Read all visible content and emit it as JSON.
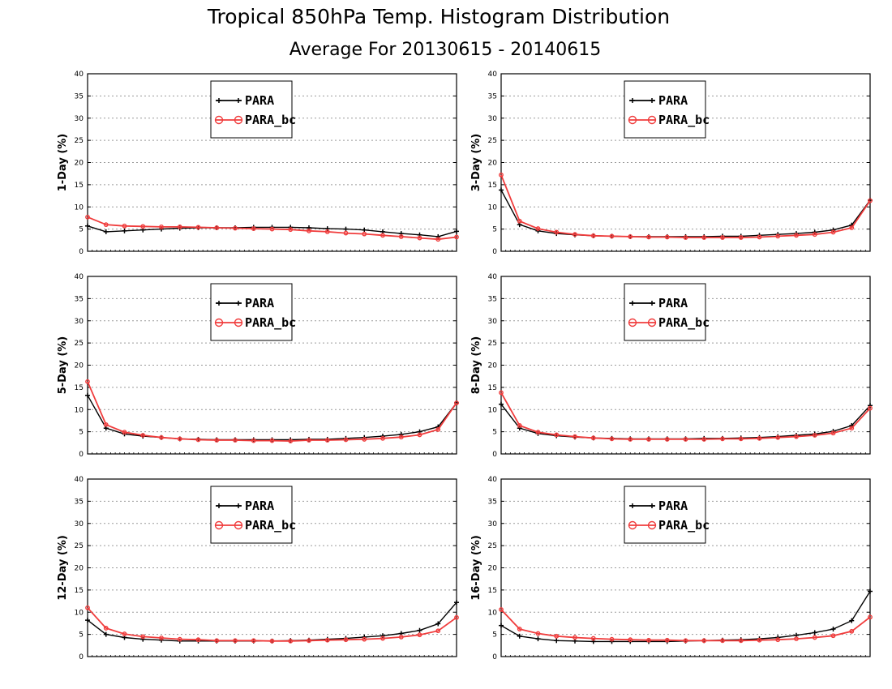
{
  "title": "Tropical 850hPa Temp. Histogram Distribution",
  "subtitle": "Average For 20130615 - 20140615",
  "colors": {
    "PARA": "#000000",
    "PARA_bc": "#f03c3c",
    "grid": "#9a9a9a",
    "frame": "#000000"
  },
  "chart_data": [
    {
      "type": "line",
      "ylabel": "1-Day (%)",
      "ylim": [
        0,
        40
      ],
      "yticks": [
        "0",
        "5",
        "10",
        "15",
        "20",
        "25",
        "30",
        "35",
        "40"
      ],
      "grid": true,
      "legend": "top-center",
      "x": [
        1,
        2,
        3,
        4,
        5,
        6,
        7,
        8,
        9,
        10,
        11,
        12,
        13,
        14,
        15,
        16,
        17,
        18,
        19,
        20,
        21
      ],
      "series": [
        {
          "name": "PARA",
          "marker": "plus",
          "values": [
            5.7,
            4.4,
            4.6,
            4.8,
            5.0,
            5.2,
            5.3,
            5.3,
            5.3,
            5.4,
            5.4,
            5.4,
            5.3,
            5.1,
            5.0,
            4.8,
            4.4,
            4.0,
            3.7,
            3.3,
            4.5
          ]
        },
        {
          "name": "PARA_bc",
          "marker": "circle",
          "values": [
            7.7,
            6.0,
            5.7,
            5.6,
            5.5,
            5.5,
            5.4,
            5.3,
            5.2,
            5.1,
            5.0,
            4.9,
            4.6,
            4.4,
            4.1,
            3.9,
            3.6,
            3.3,
            3.0,
            2.7,
            3.2
          ]
        }
      ]
    },
    {
      "type": "line",
      "ylabel": "3-Day (%)",
      "ylim": [
        0,
        40
      ],
      "yticks": [
        "0",
        "5",
        "10",
        "15",
        "20",
        "25",
        "30",
        "35",
        "40"
      ],
      "grid": true,
      "legend": "top-center",
      "x": [
        1,
        2,
        3,
        4,
        5,
        6,
        7,
        8,
        9,
        10,
        11,
        12,
        13,
        14,
        15,
        16,
        17,
        18,
        19,
        20,
        21
      ],
      "series": [
        {
          "name": "PARA",
          "marker": "plus",
          "values": [
            13.8,
            6.0,
            4.6,
            4.0,
            3.7,
            3.5,
            3.4,
            3.3,
            3.3,
            3.3,
            3.3,
            3.3,
            3.4,
            3.4,
            3.6,
            3.8,
            4.0,
            4.3,
            4.8,
            5.9,
            11.5
          ]
        },
        {
          "name": "PARA_bc",
          "marker": "circle",
          "values": [
            17.2,
            6.8,
            5.1,
            4.3,
            3.8,
            3.5,
            3.4,
            3.3,
            3.2,
            3.2,
            3.1,
            3.1,
            3.1,
            3.1,
            3.2,
            3.4,
            3.6,
            3.8,
            4.3,
            5.3,
            11.4
          ]
        }
      ]
    },
    {
      "type": "line",
      "ylabel": "5-Day (%)",
      "ylim": [
        0,
        40
      ],
      "yticks": [
        "0",
        "5",
        "10",
        "15",
        "20",
        "25",
        "30",
        "35",
        "40"
      ],
      "grid": true,
      "legend": "top-center",
      "x": [
        1,
        2,
        3,
        4,
        5,
        6,
        7,
        8,
        9,
        10,
        11,
        12,
        13,
        14,
        15,
        16,
        17,
        18,
        19,
        20,
        21
      ],
      "series": [
        {
          "name": "PARA",
          "marker": "plus",
          "values": [
            13.2,
            5.8,
            4.5,
            4.0,
            3.7,
            3.4,
            3.3,
            3.2,
            3.2,
            3.2,
            3.2,
            3.2,
            3.3,
            3.3,
            3.5,
            3.7,
            4.0,
            4.4,
            5.0,
            6.1,
            11.5
          ]
        },
        {
          "name": "PARA_bc",
          "marker": "circle",
          "values": [
            16.3,
            6.6,
            4.9,
            4.2,
            3.7,
            3.4,
            3.2,
            3.1,
            3.1,
            3.0,
            3.0,
            2.9,
            3.1,
            3.1,
            3.2,
            3.3,
            3.5,
            3.8,
            4.3,
            5.5,
            11.5
          ]
        }
      ]
    },
    {
      "type": "line",
      "ylabel": "8-Day (%)",
      "ylim": [
        0,
        40
      ],
      "yticks": [
        "0",
        "5",
        "10",
        "15",
        "20",
        "25",
        "30",
        "35",
        "40"
      ],
      "grid": true,
      "legend": "top-center",
      "x": [
        1,
        2,
        3,
        4,
        5,
        6,
        7,
        8,
        9,
        10,
        11,
        12,
        13,
        14,
        15,
        16,
        17,
        18,
        19,
        20,
        21
      ],
      "series": [
        {
          "name": "PARA",
          "marker": "plus",
          "values": [
            11.2,
            5.8,
            4.6,
            4.1,
            3.8,
            3.6,
            3.5,
            3.4,
            3.4,
            3.4,
            3.4,
            3.5,
            3.5,
            3.6,
            3.7,
            3.9,
            4.2,
            4.5,
            5.1,
            6.4,
            10.9
          ]
        },
        {
          "name": "PARA_bc",
          "marker": "circle",
          "values": [
            13.8,
            6.4,
            4.9,
            4.3,
            3.9,
            3.6,
            3.4,
            3.3,
            3.3,
            3.3,
            3.3,
            3.3,
            3.4,
            3.4,
            3.5,
            3.7,
            3.9,
            4.2,
            4.7,
            5.8,
            10.3
          ]
        }
      ]
    },
    {
      "type": "line",
      "ylabel": "12-Day (%)",
      "ylim": [
        0,
        40
      ],
      "yticks": [
        "0",
        "5",
        "10",
        "15",
        "20",
        "25",
        "30",
        "35",
        "40"
      ],
      "grid": true,
      "legend": "top-center",
      "x": [
        1,
        2,
        3,
        4,
        5,
        6,
        7,
        8,
        9,
        10,
        11,
        12,
        13,
        14,
        15,
        16,
        17,
        18,
        19,
        20,
        21
      ],
      "series": [
        {
          "name": "PARA",
          "marker": "plus",
          "values": [
            8.2,
            5.0,
            4.3,
            3.9,
            3.7,
            3.5,
            3.5,
            3.5,
            3.5,
            3.5,
            3.5,
            3.6,
            3.7,
            3.9,
            4.1,
            4.4,
            4.7,
            5.2,
            5.9,
            7.4,
            12.2
          ]
        },
        {
          "name": "PARA_bc",
          "marker": "circle",
          "values": [
            11.0,
            6.4,
            5.1,
            4.5,
            4.2,
            3.9,
            3.8,
            3.6,
            3.6,
            3.6,
            3.5,
            3.5,
            3.6,
            3.7,
            3.8,
            3.9,
            4.1,
            4.4,
            4.9,
            5.8,
            8.8
          ]
        }
      ]
    },
    {
      "type": "line",
      "ylabel": "16-Day (%)",
      "ylim": [
        0,
        40
      ],
      "yticks": [
        "0",
        "5",
        "10",
        "15",
        "20",
        "25",
        "30",
        "35",
        "40"
      ],
      "grid": true,
      "legend": "top-center",
      "x": [
        1,
        2,
        3,
        4,
        5,
        6,
        7,
        8,
        9,
        10,
        11,
        12,
        13,
        14,
        15,
        16,
        17,
        18,
        19,
        20,
        21
      ],
      "series": [
        {
          "name": "PARA",
          "marker": "plus",
          "values": [
            7.0,
            4.6,
            4.0,
            3.6,
            3.5,
            3.4,
            3.4,
            3.4,
            3.4,
            3.4,
            3.5,
            3.6,
            3.7,
            3.8,
            4.0,
            4.3,
            4.8,
            5.4,
            6.2,
            8.1,
            14.7
          ]
        },
        {
          "name": "PARA_bc",
          "marker": "circle",
          "values": [
            10.6,
            6.2,
            5.2,
            4.6,
            4.3,
            4.1,
            3.9,
            3.8,
            3.7,
            3.7,
            3.6,
            3.6,
            3.6,
            3.6,
            3.7,
            3.8,
            4.0,
            4.3,
            4.7,
            5.7,
            8.9
          ]
        }
      ]
    }
  ]
}
